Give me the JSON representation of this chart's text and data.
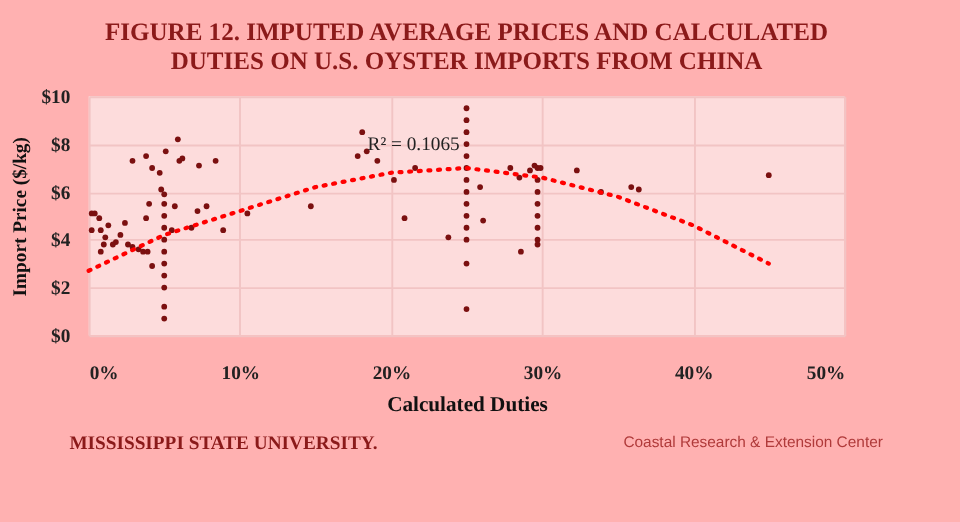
{
  "chart_data": {
    "type": "scatter",
    "title": [
      "FIGURE 12. IMPUTED AVERAGE PRICES AND CALCULATED",
      "DUTIES ON U.S. OYSTER IMPORTS FROM CHINA"
    ],
    "xlabel": "Calculated Duties",
    "ylabel": "Import Price ($/kg)",
    "xlim": [
      0,
      50
    ],
    "ylim": [
      0,
      10
    ],
    "xticks": [
      {
        "value": 0,
        "label": "0%"
      },
      {
        "value": 10,
        "label": "10%"
      },
      {
        "value": 20,
        "label": "20%"
      },
      {
        "value": 30,
        "label": "30%"
      },
      {
        "value": 40,
        "label": "40%"
      },
      {
        "value": 50,
        "label": "50%"
      }
    ],
    "yticks": [
      {
        "value": 0,
        "label": "$0"
      },
      {
        "value": 2,
        "label": "$2"
      },
      {
        "value": 4,
        "label": "$4"
      },
      {
        "value": 6,
        "label": "$6"
      },
      {
        "value": 8,
        "label": "$8"
      },
      {
        "value": 10,
        "label": "$10"
      }
    ],
    "grid": true,
    "series": [
      {
        "marker": "circle",
        "color": "#7b1010",
        "x": [
          0.2,
          0.4,
          0.7,
          0.2,
          0.8,
          1.1,
          1.0,
          0.8,
          1.6,
          1.3,
          1.8,
          2.1,
          2.4,
          2.6,
          2.9,
          3.3,
          3.6,
          3.9,
          3.8,
          4.0,
          4.2,
          2.9,
          3.8,
          4.2,
          4.7,
          4.8,
          5.1,
          5.9,
          6.0,
          6.2,
          5.7,
          5.5,
          6.8,
          7.2,
          7.8,
          7.3,
          8.4,
          8.9,
          10.5,
          14.7,
          18.1,
          17.8,
          18.4,
          19.1,
          20.2,
          20.9,
          21.6,
          5,
          5,
          5,
          5,
          5,
          5,
          5,
          5,
          5,
          5,
          5,
          25,
          25,
          25,
          25,
          25,
          25,
          25,
          25,
          25,
          25,
          25,
          25,
          25,
          25,
          29.7,
          29.7,
          29.7,
          29.7,
          29.7,
          29.7,
          29.7,
          29.7,
          23.8,
          25.9,
          26.1,
          27.9,
          28.5,
          29.2,
          29.5,
          29.9,
          28.6,
          32.3,
          33.9,
          35.9,
          36.4,
          45.0
        ],
        "values": [
          5.1,
          5.1,
          4.9,
          4.4,
          4.4,
          4.1,
          3.8,
          3.5,
          3.8,
          4.6,
          3.9,
          4.2,
          4.7,
          3.8,
          3.7,
          3.6,
          3.5,
          3.5,
          4.9,
          5.5,
          2.9,
          7.3,
          7.5,
          7.0,
          6.8,
          6.1,
          7.7,
          8.2,
          7.3,
          7.4,
          5.4,
          4.4,
          4.5,
          5.2,
          5.4,
          7.1,
          7.3,
          4.4,
          5.1,
          5.4,
          8.5,
          7.5,
          7.7,
          7.3,
          6.5,
          4.9,
          7.0,
          0.7,
          1.2,
          2.0,
          2.5,
          3.0,
          3.5,
          4.0,
          4.5,
          5.0,
          5.5,
          5.9,
          9.5,
          9.0,
          8.5,
          8.0,
          7.5,
          7.0,
          6.5,
          6.0,
          5.5,
          5.0,
          4.5,
          4.0,
          3.0,
          1.1,
          7.0,
          6.5,
          6.0,
          5.5,
          5.0,
          4.5,
          4.0,
          3.8,
          4.1,
          6.2,
          4.8,
          7.0,
          6.6,
          6.9,
          7.1,
          7.0,
          3.5,
          6.9,
          6.0,
          6.2,
          6.1,
          6.7
        ]
      },
      {
        "type": "line",
        "marker": "none",
        "line_style": "dotted",
        "color": "#ff0000",
        "x": [
          0,
          5,
          10,
          15,
          20,
          25,
          30,
          35,
          40,
          45
        ],
        "values": [
          2.7,
          4.2,
          5.2,
          6.2,
          6.8,
          7.0,
          6.6,
          5.8,
          4.6,
          3.0
        ]
      }
    ],
    "annotations": [
      "R² = 0.1065",
      "MISSISSIPPI STATE UNIVERSITY.",
      "Coastal Research & Extension Center"
    ]
  }
}
